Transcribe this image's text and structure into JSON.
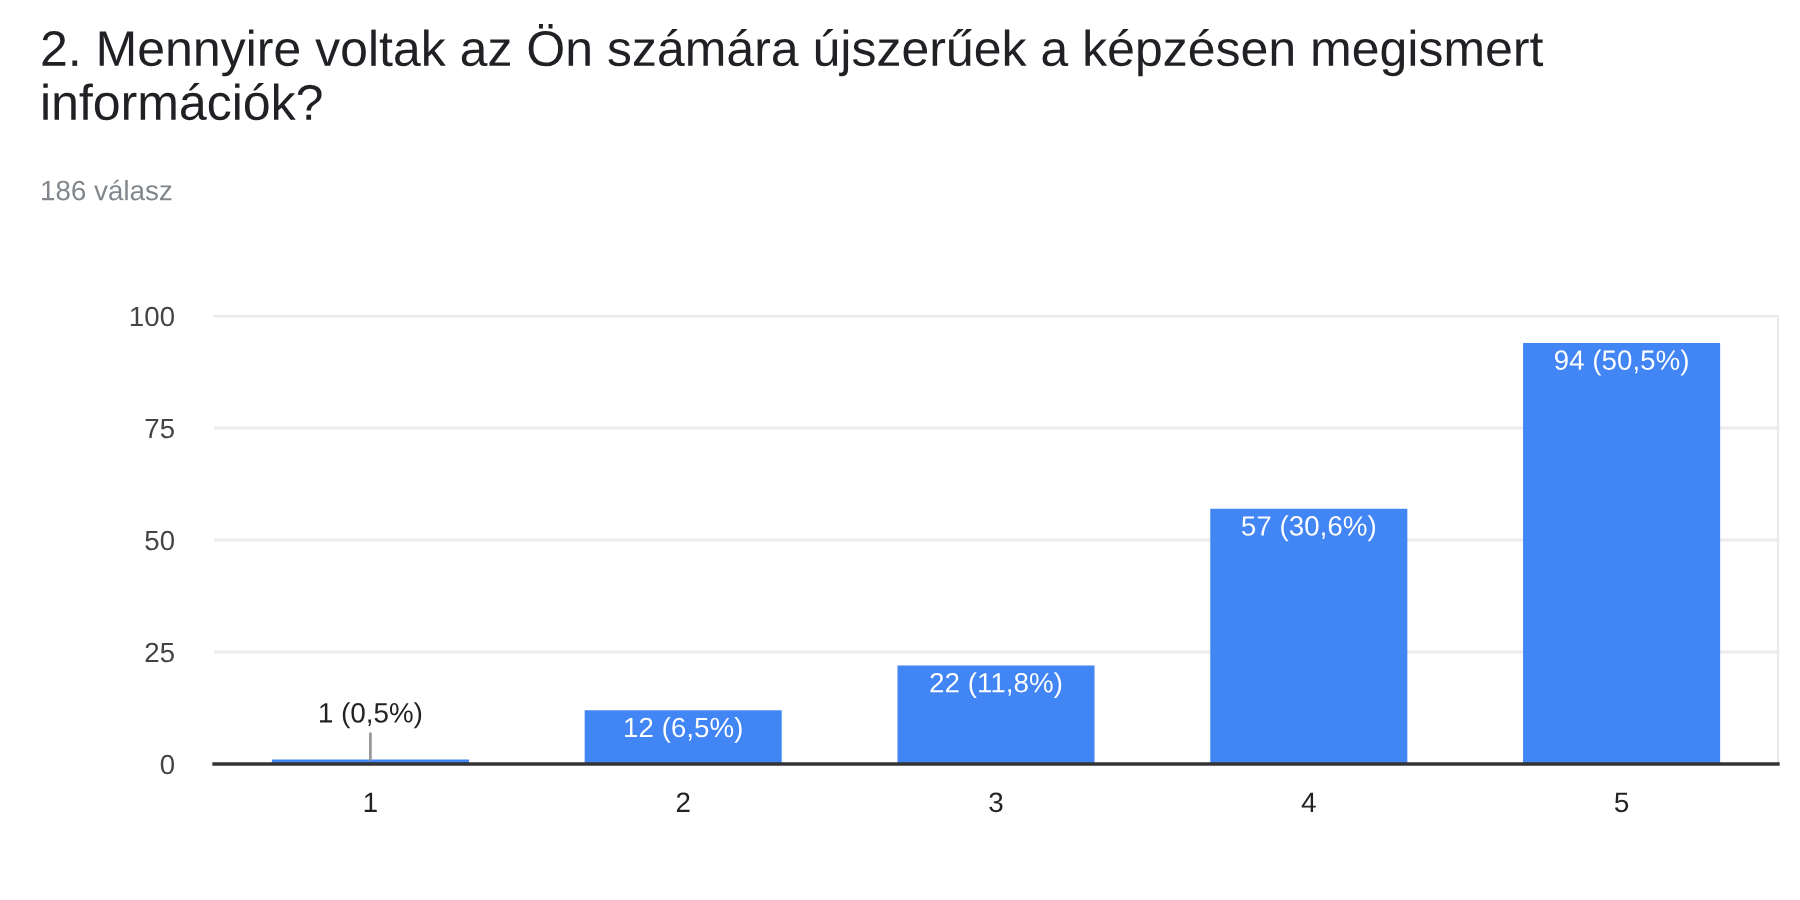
{
  "chart_data": {
    "type": "bar",
    "title": "2. Mennyire voltak az Ön számára újszerűek a képzésen megismert információk?",
    "subtitle": "186 válasz",
    "categories": [
      "1",
      "2",
      "3",
      "4",
      "5"
    ],
    "values": [
      1,
      12,
      22,
      57,
      94
    ],
    "color": "#4285f4",
    "value_labels": [
      "1 (0,5%)",
      "12 (6,5%)",
      "22 (11,8%)",
      "57 (30,6%)",
      "94 (50,5%)"
    ],
    "ylim": [
      0,
      100
    ],
    "yticks": [
      0,
      25,
      50,
      75,
      100
    ],
    "grid": "y"
  }
}
